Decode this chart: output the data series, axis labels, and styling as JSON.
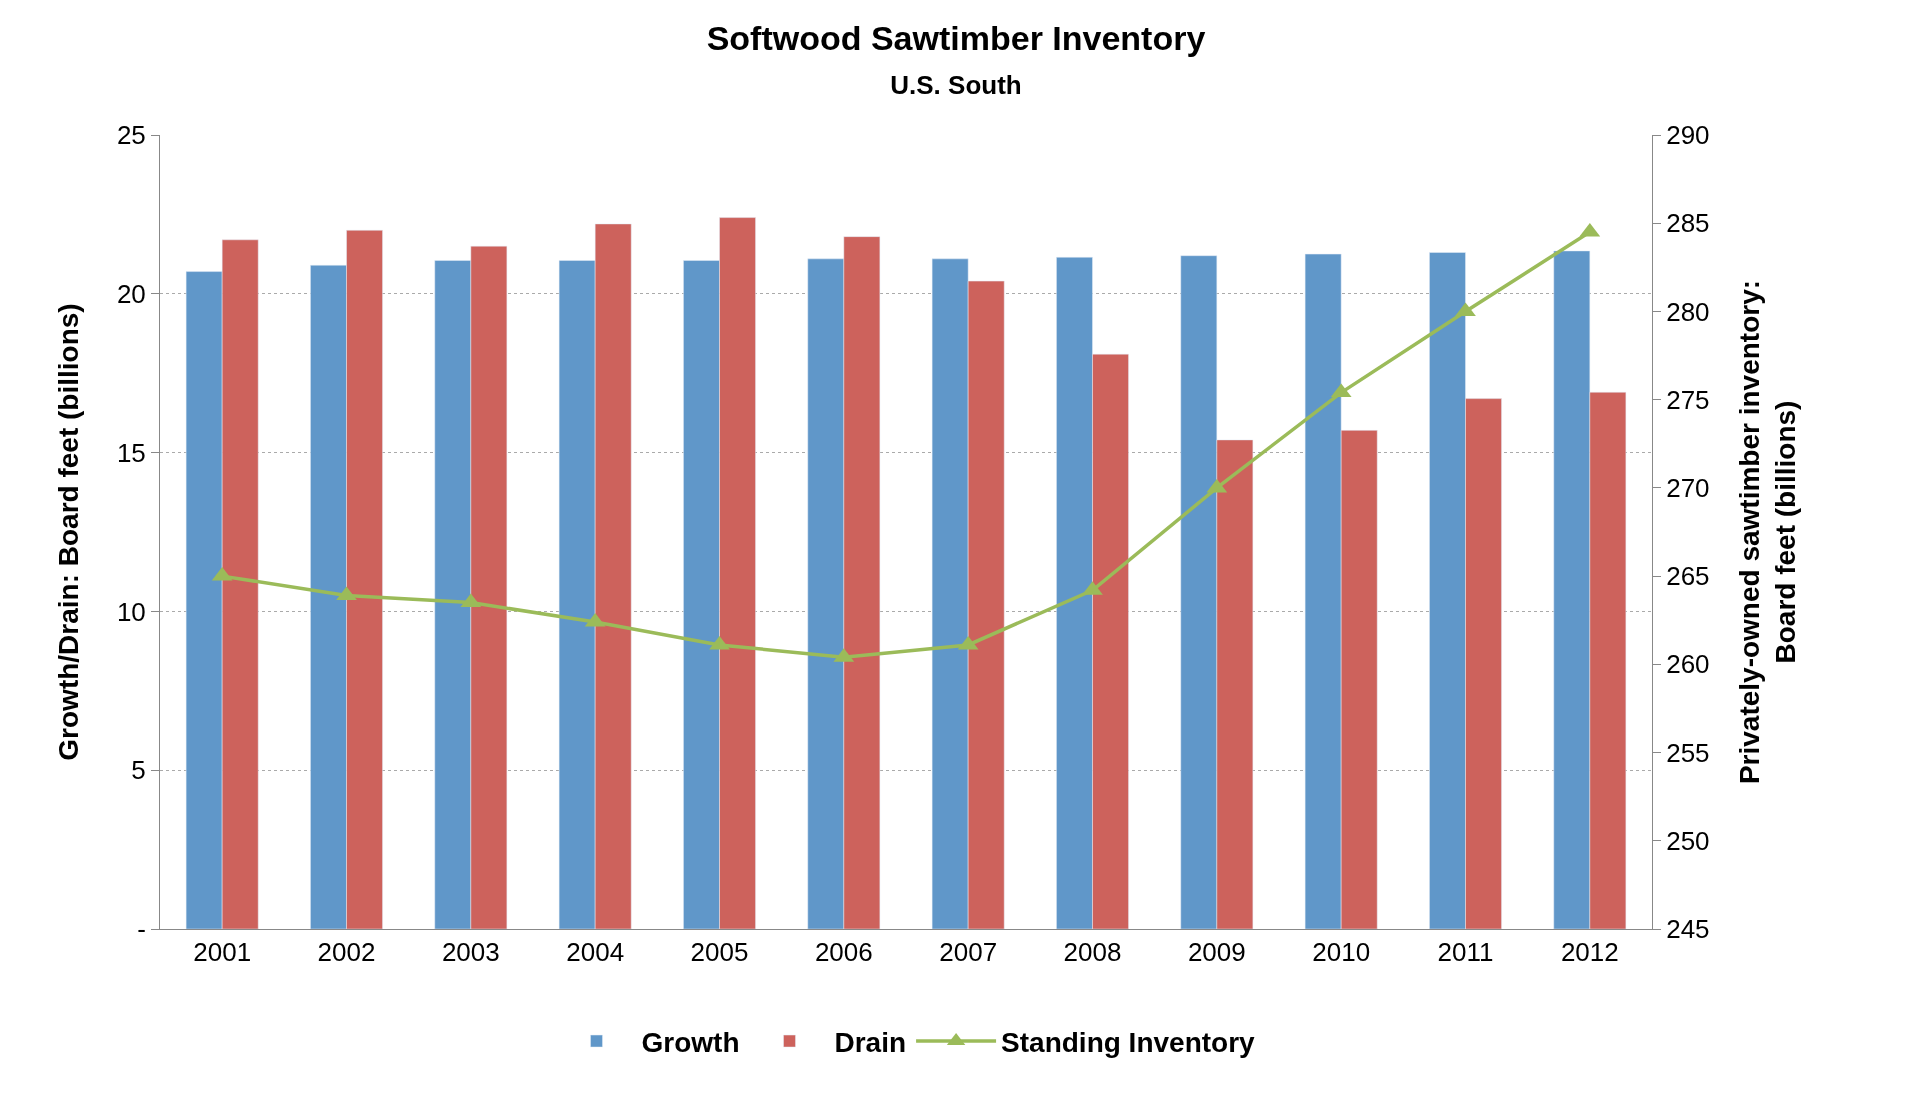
{
  "chart_data": {
    "type": "bar",
    "title": "Softwood Sawtimber Inventory",
    "subtitle": "U.S. South",
    "ylabel": "Growth/Drain: Board feet (billions)",
    "y2label": "Privately-owned sawtimber inventory:\nBoard feet (billions)",
    "categories": [
      "2001",
      "2002",
      "2003",
      "2004",
      "2005",
      "2006",
      "2007",
      "2008",
      "2009",
      "2010",
      "2011",
      "2012"
    ],
    "series": [
      {
        "name": "Growth",
        "color": "#6097c9",
        "values": [
          20.7,
          20.9,
          21.05,
          21.05,
          21.05,
          21.1,
          21.1,
          21.15,
          21.2,
          21.25,
          21.3,
          21.35
        ]
      },
      {
        "name": "Drain",
        "color": "#cd625c",
        "values": [
          21.7,
          22.0,
          21.5,
          22.2,
          22.4,
          21.8,
          20.4,
          18.1,
          15.4,
          15.7,
          16.7,
          16.9
        ]
      },
      {
        "name": "Standing Inventory",
        "type": "line",
        "axis": "y2",
        "color": "#9bbb59",
        "marker": "triangle",
        "values": [
          265.0,
          263.9,
          263.5,
          262.4,
          261.1,
          260.4,
          261.1,
          264.2,
          270.0,
          275.4,
          280.0,
          284.5
        ]
      }
    ],
    "ylim": [
      0,
      25
    ],
    "yticks": [
      {
        "value": 0,
        "label": "-"
      },
      5,
      10,
      15,
      20,
      25
    ],
    "y2lim": [
      245,
      290
    ],
    "y2ticks": [
      245,
      250,
      255,
      260,
      265,
      270,
      275,
      280,
      285,
      290
    ],
    "grid": "y",
    "legend": "bottom"
  }
}
